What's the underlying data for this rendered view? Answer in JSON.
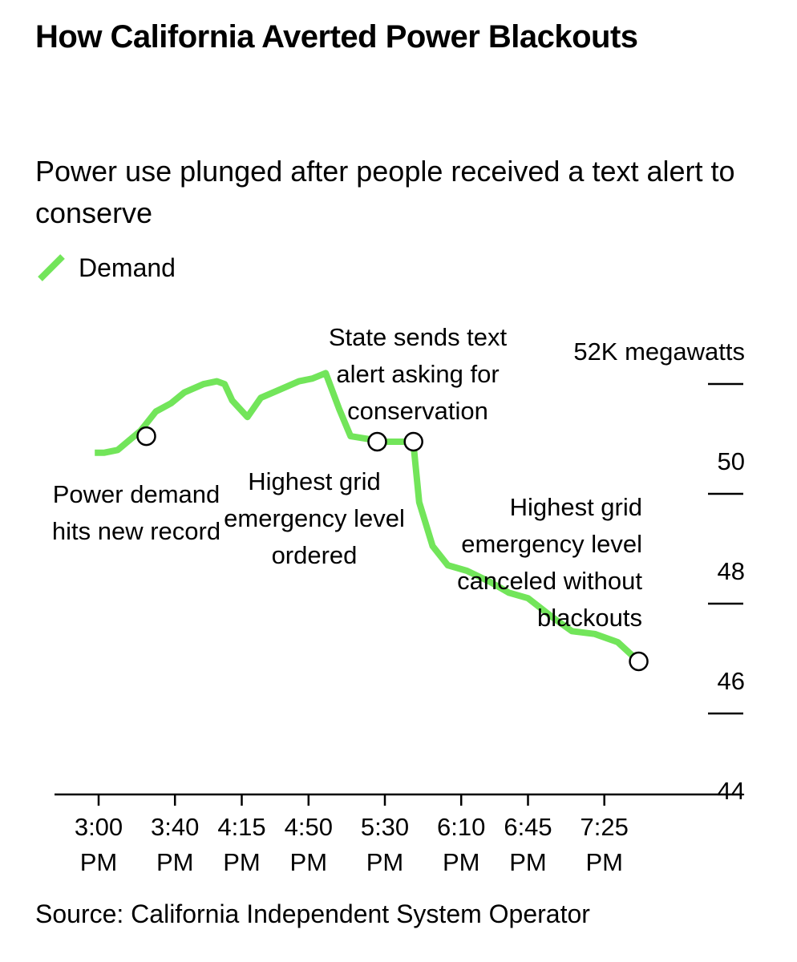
{
  "title": "How California Averted Power Blackouts",
  "subtitle": "Power use plunged after people received a text alert to conserve",
  "source": "Source: California Independent System Operator",
  "colors": {
    "demand": "#72e55a",
    "axis": "#000000",
    "background": "#ffffff"
  },
  "chart_data": {
    "type": "line",
    "title": "How California Averted Power Blackouts",
    "subtitle": "Power use plunged after people received a text alert to conserve",
    "legend": {
      "position": "top-left",
      "entries": [
        "Demand"
      ]
    },
    "grid": false,
    "x_ticks": [
      {
        "time": "3:00",
        "line1": "3:00",
        "line2": "PM"
      },
      {
        "time": "3:40",
        "line1": "3:40",
        "line2": "PM"
      },
      {
        "time": "4:15",
        "line1": "4:15",
        "line2": "PM"
      },
      {
        "time": "4:50",
        "line1": "4:50",
        "line2": "PM"
      },
      {
        "time": "5:30",
        "line1": "5:30",
        "line2": "PM"
      },
      {
        "time": "6:10",
        "line1": "6:10",
        "line2": "PM"
      },
      {
        "time": "6:45",
        "line1": "6:45",
        "line2": "PM"
      },
      {
        "time": "7:25",
        "line1": "7:25",
        "line2": "PM"
      }
    ],
    "y_axis": {
      "unit_label": "52K megawatts",
      "ticks": [
        {
          "value": 52,
          "label": "52K megawatts"
        },
        {
          "value": 50,
          "label": "50"
        },
        {
          "value": 48,
          "label": "48"
        },
        {
          "value": 46,
          "label": "46"
        },
        {
          "value": 44,
          "label": "44"
        }
      ],
      "ylim": [
        44,
        52
      ]
    },
    "xlim": [
      "2:58",
      "8:05"
    ],
    "series": [
      {
        "name": "Demand",
        "points": [
          {
            "x": "2:58",
            "y": 49.8
          },
          {
            "x": "3:03",
            "y": 49.8
          },
          {
            "x": "3:10",
            "y": 49.85
          },
          {
            "x": "3:22",
            "y": 50.2
          },
          {
            "x": "3:30",
            "y": 50.55
          },
          {
            "x": "3:38",
            "y": 50.7
          },
          {
            "x": "3:45",
            "y": 50.9
          },
          {
            "x": "3:55",
            "y": 51.05
          },
          {
            "x": "4:02",
            "y": 51.1
          },
          {
            "x": "4:06",
            "y": 51.05
          },
          {
            "x": "4:10",
            "y": 50.75
          },
          {
            "x": "4:18",
            "y": 50.45
          },
          {
            "x": "4:25",
            "y": 50.8
          },
          {
            "x": "4:35",
            "y": 50.95
          },
          {
            "x": "4:45",
            "y": 51.1
          },
          {
            "x": "4:52",
            "y": 51.15
          },
          {
            "x": "4:59",
            "y": 51.25
          },
          {
            "x": "5:06",
            "y": 50.6
          },
          {
            "x": "5:12",
            "y": 50.1
          },
          {
            "x": "5:30",
            "y": 50.0
          },
          {
            "x": "5:40",
            "y": 50.0
          },
          {
            "x": "5:45",
            "y": 49.95
          },
          {
            "x": "5:48",
            "y": 48.9
          },
          {
            "x": "5:55",
            "y": 48.1
          },
          {
            "x": "6:03",
            "y": 47.75
          },
          {
            "x": "6:13",
            "y": 47.65
          },
          {
            "x": "6:25",
            "y": 47.45
          },
          {
            "x": "6:35",
            "y": 47.25
          },
          {
            "x": "6:45",
            "y": 47.15
          },
          {
            "x": "6:58",
            "y": 46.8
          },
          {
            "x": "7:08",
            "y": 46.55
          },
          {
            "x": "7:20",
            "y": 46.5
          },
          {
            "x": "7:32",
            "y": 46.35
          },
          {
            "x": "7:43",
            "y": 46.0
          }
        ]
      }
    ],
    "events": [
      {
        "x": "3:25",
        "y": 50.1,
        "label": [
          "Power demand",
          "hits new record"
        ]
      },
      {
        "x": "5:26",
        "y": 50.0,
        "label": [
          "Highest grid",
          "emergency level",
          "ordered"
        ]
      },
      {
        "x": "5:45",
        "y": 50.0,
        "label": [
          "State sends text",
          "alert asking for",
          "conservation"
        ]
      },
      {
        "x": "7:43",
        "y": 46.0,
        "label": [
          "Highest grid",
          "emergency level",
          "canceled without",
          "blackouts"
        ]
      }
    ]
  }
}
